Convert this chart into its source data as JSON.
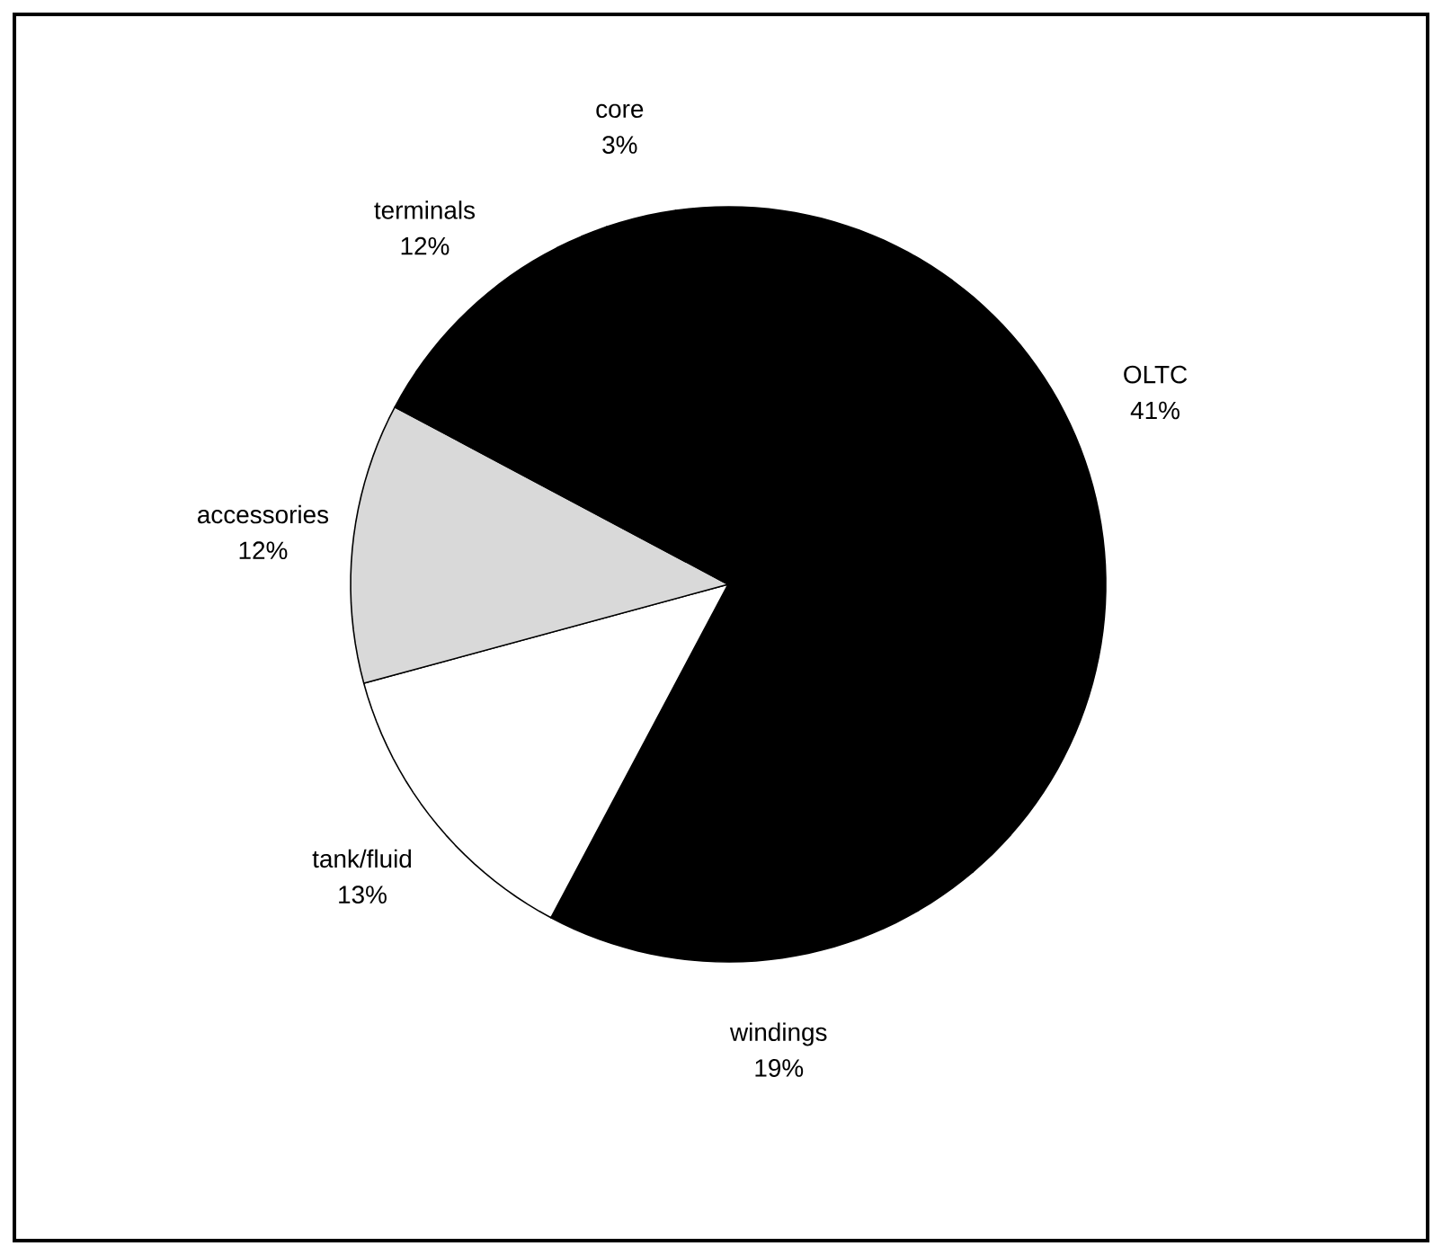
{
  "chart_data": {
    "type": "pie",
    "categories": [
      "core",
      "OLTC",
      "windings",
      "tank/fluid",
      "accessories",
      "terminals"
    ],
    "values": [
      3,
      41,
      19,
      13,
      12,
      12
    ],
    "value_labels": [
      "3%",
      "41%",
      "19%",
      "13%",
      "12%",
      "12%"
    ],
    "colors": [
      "#000000",
      "#000000",
      "#000000",
      "#ffffff",
      "#d9d9d9",
      "#000000"
    ]
  }
}
